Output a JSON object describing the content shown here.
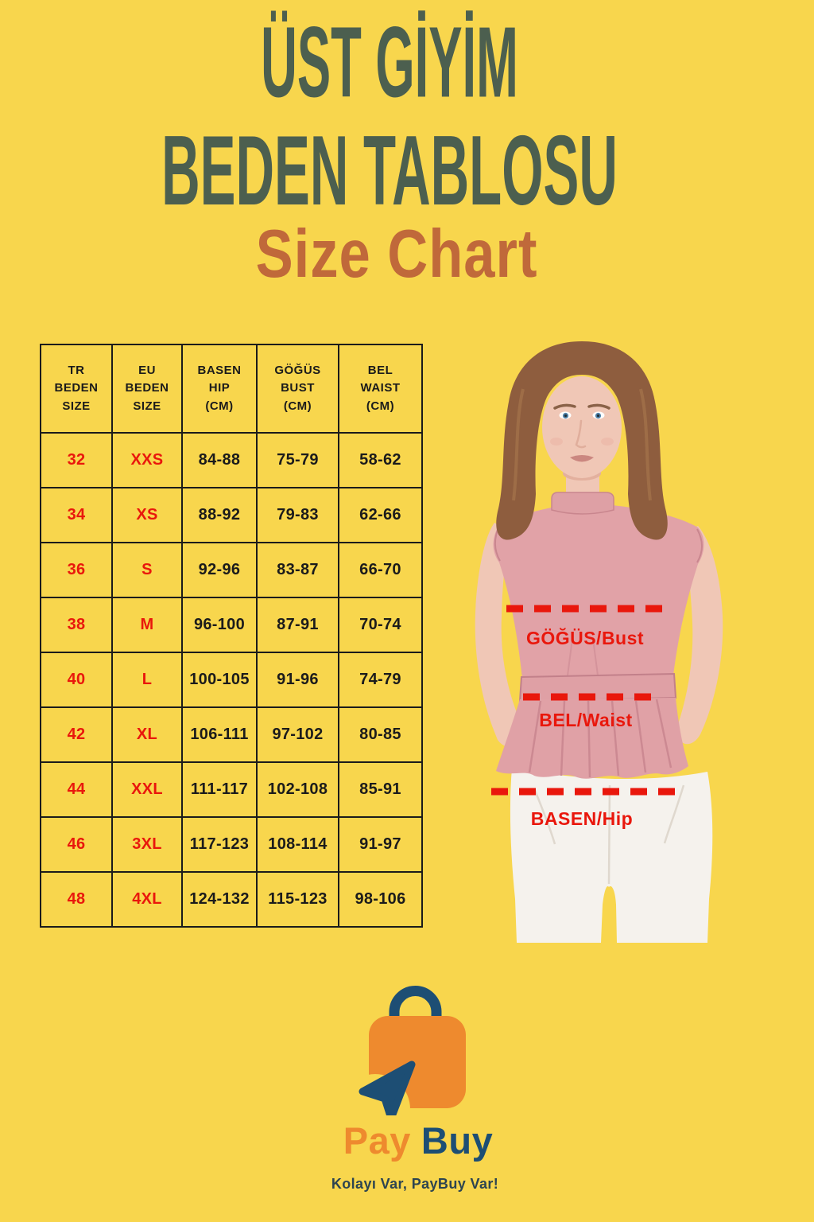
{
  "header": {
    "title_line1": "ÜST GİYİM",
    "title_line2": "BEDEN TABLOSU",
    "subtitle": "Size Chart"
  },
  "size_table": {
    "header_columns": [
      [
        "TR",
        "BEDEN",
        "SIZE"
      ],
      [
        "EU",
        "BEDEN",
        "SIZE"
      ],
      [
        "BASEN",
        "HIP",
        "(CM)"
      ],
      [
        "GÖĞÜS",
        "BUST",
        "(CM)"
      ],
      [
        "BEL",
        "WAIST",
        "(CM)"
      ]
    ],
    "rows": [
      [
        "32",
        "XXS",
        "84-88",
        "75-79",
        "58-62"
      ],
      [
        "34",
        "XS",
        "88-92",
        "79-83",
        "62-66"
      ],
      [
        "36",
        "S",
        "92-96",
        "83-87",
        "66-70"
      ],
      [
        "38",
        "M",
        "96-100",
        "87-91",
        "70-74"
      ],
      [
        "40",
        "L",
        "100-105",
        "91-96",
        "74-79"
      ],
      [
        "42",
        "XL",
        "106-111",
        "97-102",
        "80-85"
      ],
      [
        "44",
        "XXL",
        "111-117",
        "102-108",
        "85-91"
      ],
      [
        "46",
        "3XL",
        "117-123",
        "108-114",
        "91-97"
      ],
      [
        "48",
        "4XL",
        "124-132",
        "115-123",
        "98-106"
      ]
    ]
  },
  "model": {
    "bust_label": "GÖĞÜS/Bust",
    "waist_label": "BEL/Waist",
    "hip_label": "BASEN/Hip"
  },
  "footer": {
    "brand_first": "Pay",
    "brand_second": "Buy",
    "tagline": "Kolayı Var, PayBuy Var!"
  },
  "colors": {
    "background": "#F8D64D",
    "title_green": "#4C5F4F",
    "subtitle_orange": "#C0693A",
    "accent_red": "#E9170C",
    "table_text": "#1B1B1B",
    "brand_orange": "#EE8A2E",
    "brand_navy": "#1D4E74",
    "top_pink": "#E1A2A7",
    "pants_white": "#F5F2ED"
  }
}
